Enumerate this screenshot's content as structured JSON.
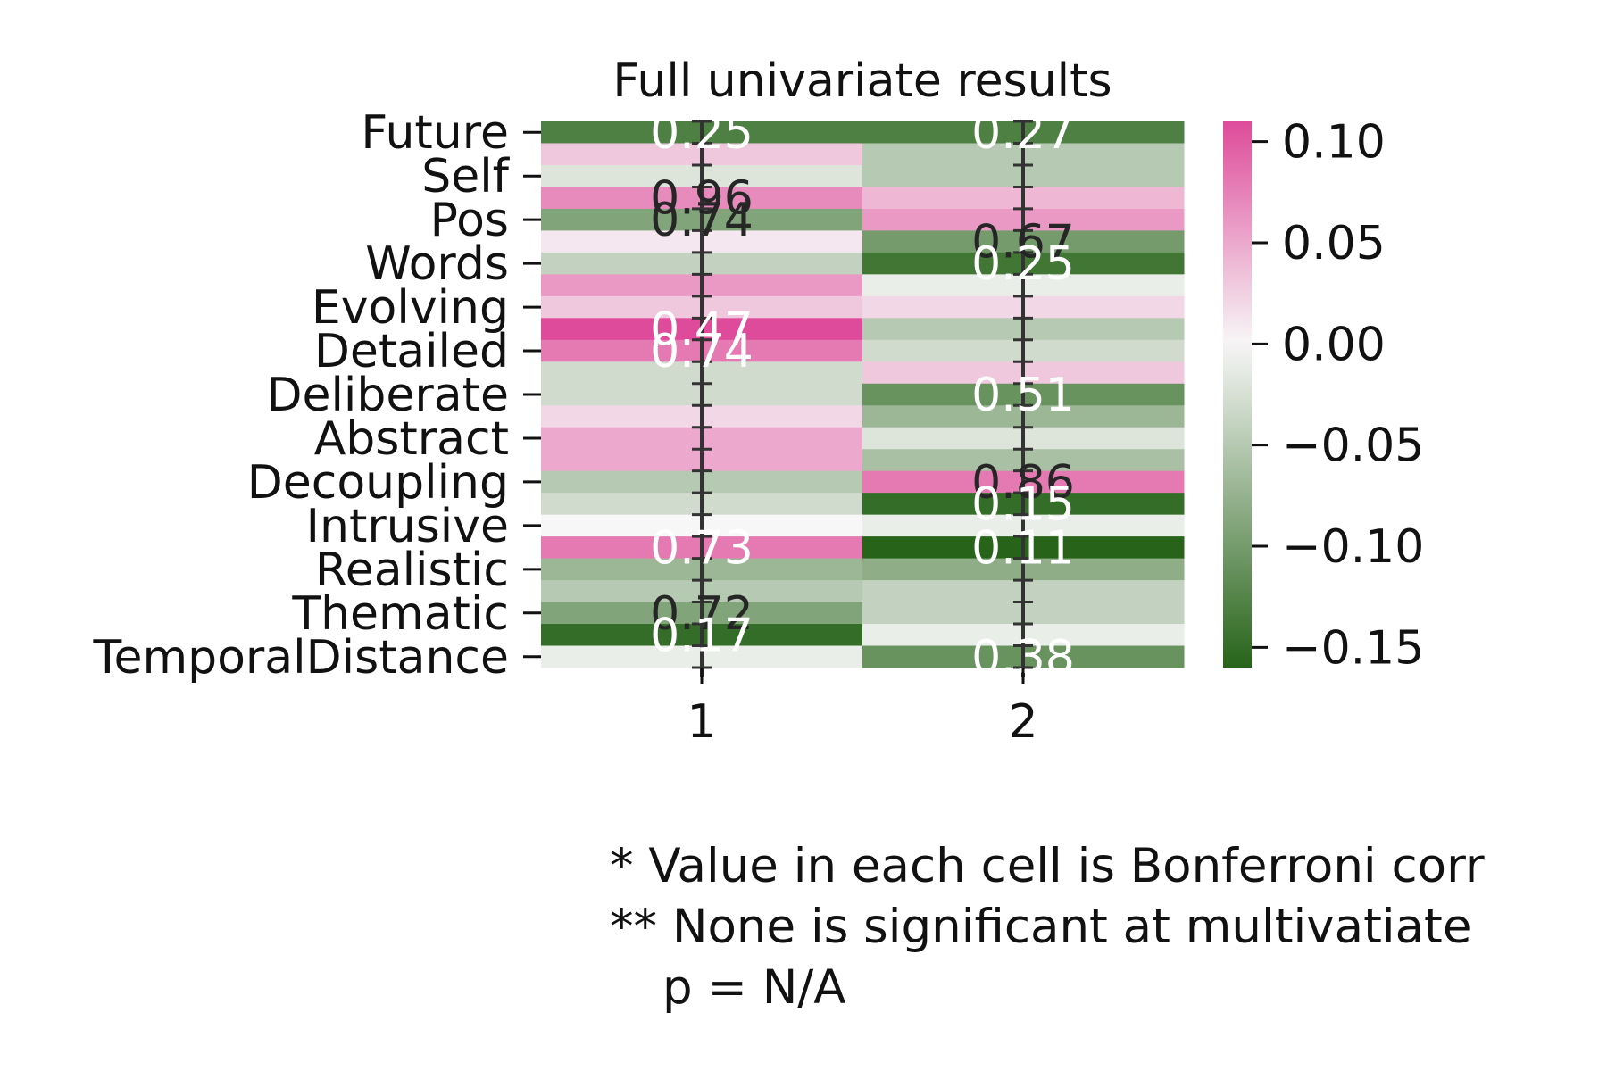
{
  "chart_data": {
    "type": "heatmap",
    "title": "Full univariate results",
    "x_labels": [
      "1",
      "2"
    ],
    "y_tick_labels": [
      "Future",
      "Self",
      "Pos",
      "Words",
      "Evolving",
      "Detailed",
      "Deliberate",
      "Abstract",
      "Decoupling",
      "Intrusive",
      "Realistic",
      "Thematic",
      "TemporalDistance"
    ],
    "colorbar": {
      "min": -0.16,
      "max": 0.11,
      "ticks": [
        "0.10",
        "0.05",
        "0.00",
        "−0.05",
        "−0.10",
        "−0.15"
      ],
      "colors": {
        "low": "#276419",
        "mid": "#f7f7f7",
        "high": "#de4b9a"
      }
    },
    "columns": [
      {
        "values": [
          -0.13,
          0.03,
          -0.02,
          0.07,
          -0.09,
          0.01,
          -0.04,
          0.06,
          0.03,
          0.11,
          0.08,
          -0.03,
          -0.03,
          0.02,
          0.05,
          0.05,
          -0.05,
          -0.03,
          0.0,
          0.08,
          -0.07,
          -0.05,
          -0.09,
          -0.15,
          -0.01
        ],
        "annotations": [
          {
            "label": "0.25",
            "row": 0,
            "color": "light"
          },
          {
            "label": "0.96",
            "row": 3,
            "color": "dark"
          },
          {
            "label": "0.74",
            "row": 4,
            "color": "dark"
          },
          {
            "label": "0.47",
            "row": 9,
            "color": "light"
          },
          {
            "label": "0.74",
            "row": 10,
            "color": "light"
          },
          {
            "label": "0.73",
            "row": 19,
            "color": "light"
          },
          {
            "label": "0.72",
            "row": 22,
            "color": "dark"
          },
          {
            "label": "0.17",
            "row": 23,
            "color": "light"
          }
        ]
      },
      {
        "values": [
          -0.13,
          -0.05,
          -0.05,
          0.04,
          0.06,
          -0.1,
          -0.14,
          -0.01,
          0.02,
          -0.05,
          -0.03,
          0.03,
          -0.11,
          -0.07,
          -0.02,
          -0.06,
          0.08,
          -0.15,
          -0.01,
          -0.16,
          -0.08,
          -0.04,
          -0.04,
          -0.01,
          -0.11
        ],
        "annotations": [
          {
            "label": "0.27",
            "row": 0,
            "color": "light"
          },
          {
            "label": "0.67",
            "row": 5,
            "color": "dark"
          },
          {
            "label": "0.25",
            "row": 6,
            "color": "light"
          },
          {
            "label": "0.51",
            "row": 12,
            "color": "light"
          },
          {
            "label": "0.86",
            "row": 16,
            "color": "dark"
          },
          {
            "label": "0.15",
            "row": 17,
            "color": "light"
          },
          {
            "label": "0.11",
            "row": 19,
            "color": "light"
          },
          {
            "label": "0.38",
            "row": 24,
            "color": "light"
          }
        ]
      }
    ]
  },
  "footnote": {
    "line1": "* Value in each cell is Bonferroni corr",
    "line2": "** None is significant at multivatiate",
    "line3": "p = N/A"
  }
}
